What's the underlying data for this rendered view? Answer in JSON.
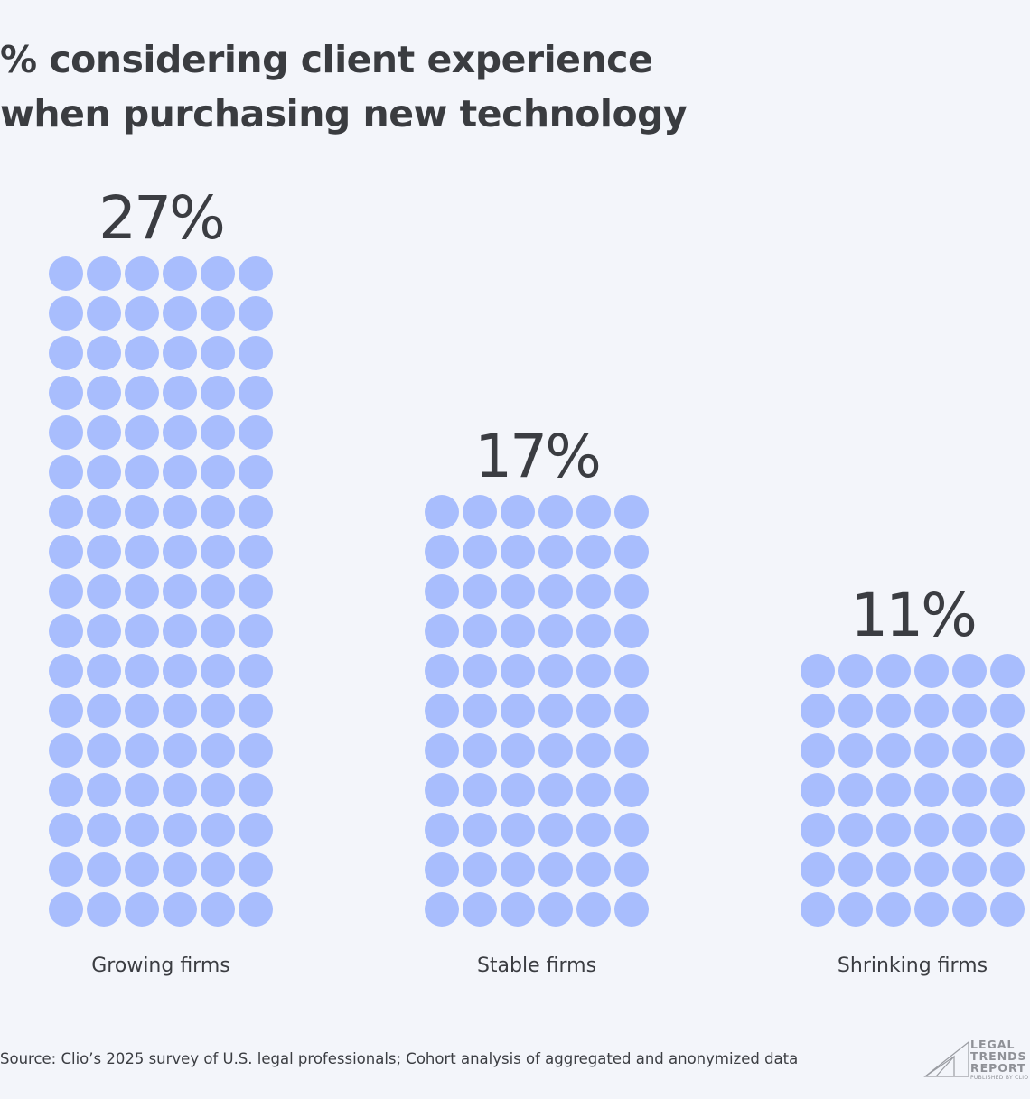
{
  "title_lines": [
    "% considering client experience",
    "when purchasing new technology"
  ],
  "source": "Source: Clio’s 2025 survey of U.S. legal professionals; Cohort analysis of aggregated and anonymized data",
  "logo": {
    "lines": [
      "LEGAL",
      "TRENDS",
      "REPORT"
    ],
    "sub": "PUBLISHED BY CLIO"
  },
  "colors": {
    "dot": "#a8bdfd",
    "background": "#f3f5fa",
    "text": "#3b3d42"
  },
  "chart_data": {
    "type": "bar",
    "style": "dot-matrix pictogram",
    "title": "% considering client experience when purchasing new technology",
    "categories": [
      "Growing firms",
      "Stable firms",
      "Shrinking firms"
    ],
    "values": [
      27,
      17,
      11
    ],
    "value_labels": [
      "27%",
      "17%",
      "11%"
    ],
    "dot_rows": [
      17,
      11,
      7
    ],
    "dot_columns": 6,
    "unit": "%",
    "grid": false,
    "legend": "none"
  }
}
